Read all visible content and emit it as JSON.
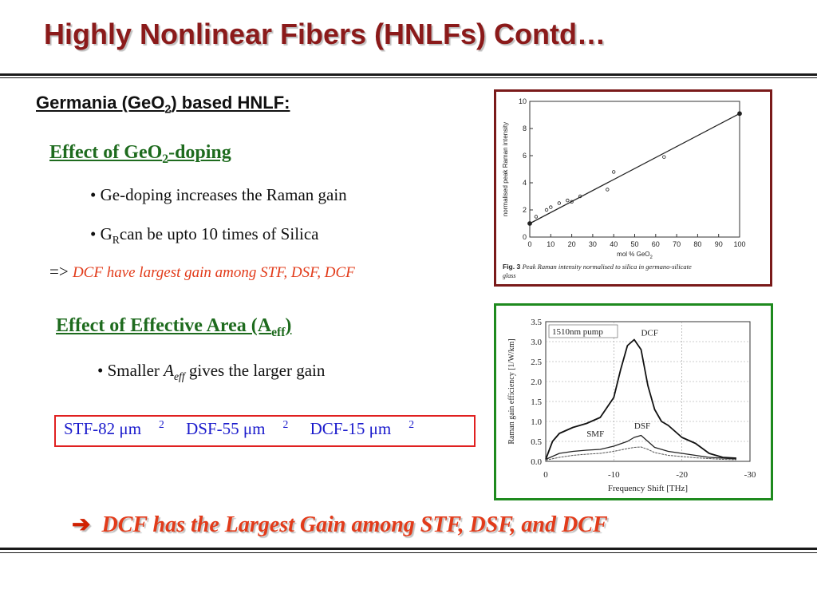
{
  "slide": {
    "title": "Highly Nonlinear Fibers (HNLFs) Contd…",
    "subtitle": {
      "pre": "Germania (GeO",
      "sub": "2",
      "post": ") based HNLF:"
    }
  },
  "geo2_section": {
    "heading": {
      "pre": "Effect of GeO",
      "sub": "2",
      "post": "-doping"
    },
    "bullet1": "• Ge-doping increases the Raman gain",
    "bullet2": {
      "pre": "•  G",
      "sub": "R",
      "post": "can be upto 10 times of Silica"
    },
    "implication": {
      "arrow": "=> ",
      "text": "DCF have largest gain among STF, DSF, DCF"
    }
  },
  "aeff_section": {
    "heading": {
      "pre": "Effect of Effective Area (A",
      "sub": "eff",
      "post": ")"
    },
    "bullet": {
      "pre": "• Smaller ",
      "var": "A",
      "sub": "eff",
      "post": " gives the larger gain"
    },
    "values": [
      {
        "label": "STF-82 μm",
        "sup": "2"
      },
      {
        "label": "DSF-55 μm",
        "sup": "2"
      },
      {
        "label": "DCF-15 μm",
        "sup": "2"
      }
    ]
  },
  "conclusion": {
    "arrow": "➔",
    "text": "DCF has the Largest Gain among STF, DSF, and DCF"
  },
  "chart_data": [
    {
      "type": "scatter",
      "xlabel": "mol % GeO2",
      "ylabel": "normalised peak Raman intensity",
      "xlim": [
        0,
        100
      ],
      "ylim": [
        0,
        10
      ],
      "xticks": [
        "0",
        "10",
        "20",
        "30",
        "40",
        "50",
        "60",
        "70",
        "80",
        "90",
        "100"
      ],
      "yticks": [
        "0",
        "2",
        "4",
        "6",
        "8",
        "10"
      ],
      "points": [
        {
          "x": 0,
          "y": 1.0
        },
        {
          "x": 3,
          "y": 1.5
        },
        {
          "x": 8,
          "y": 2.0
        },
        {
          "x": 10,
          "y": 2.2
        },
        {
          "x": 14,
          "y": 2.5
        },
        {
          "x": 18,
          "y": 2.7
        },
        {
          "x": 20,
          "y": 2.6
        },
        {
          "x": 24,
          "y": 3.0
        },
        {
          "x": 37,
          "y": 3.5
        },
        {
          "x": 40,
          "y": 4.8
        },
        {
          "x": 64,
          "y": 5.9
        },
        {
          "x": 100,
          "y": 9.1
        }
      ],
      "fit_line": {
        "x": [
          0,
          100
        ],
        "y": [
          1.0,
          9.1
        ]
      },
      "caption": {
        "label": "Fig. 3",
        "text": "Peak Raman intensity normalised to silica in germano-silicate",
        "line2": "glass"
      }
    },
    {
      "type": "line",
      "xlabel": "Frequency Shift [THz]",
      "ylabel": "Raman gain efficiency [1/W/km]",
      "xlim": [
        0,
        -30
      ],
      "ylim": [
        0,
        3.5
      ],
      "xticks": [
        "0",
        "-10",
        "-20",
        "-30"
      ],
      "yticks": [
        "0.0",
        "0.5",
        "1.0",
        "1.5",
        "2.0",
        "2.5",
        "3.0",
        "3.5"
      ],
      "annotation": "1510nm pump",
      "series": [
        {
          "name": "DCF",
          "x": [
            0,
            -1,
            -2,
            -4,
            -6,
            -8,
            -10,
            -11,
            -12,
            -13,
            -14,
            -15,
            -16,
            -17,
            -18,
            -20,
            -22,
            -24,
            -26,
            -28
          ],
          "y": [
            0.05,
            0.5,
            0.7,
            0.85,
            0.95,
            1.1,
            1.6,
            2.3,
            2.9,
            3.05,
            2.8,
            1.9,
            1.3,
            1.0,
            0.9,
            0.6,
            0.45,
            0.2,
            0.1,
            0.08
          ]
        },
        {
          "name": "DSF",
          "x": [
            0,
            -2,
            -4,
            -6,
            -8,
            -10,
            -12,
            -13,
            -14,
            -15,
            -16,
            -18,
            -20,
            -22,
            -24,
            -26,
            -28
          ],
          "y": [
            0.05,
            0.2,
            0.25,
            0.28,
            0.3,
            0.38,
            0.5,
            0.6,
            0.65,
            0.5,
            0.35,
            0.25,
            0.2,
            0.15,
            0.1,
            0.08,
            0.06
          ]
        },
        {
          "name": "SMF",
          "x": [
            0,
            -2,
            -4,
            -6,
            -8,
            -10,
            -12,
            -13,
            -14,
            -15,
            -16,
            -18,
            -20,
            -22,
            -24,
            -26,
            -28
          ],
          "y": [
            0.03,
            0.1,
            0.15,
            0.18,
            0.2,
            0.25,
            0.32,
            0.35,
            0.36,
            0.3,
            0.22,
            0.15,
            0.12,
            0.09,
            0.07,
            0.05,
            0.04
          ]
        }
      ]
    }
  ]
}
